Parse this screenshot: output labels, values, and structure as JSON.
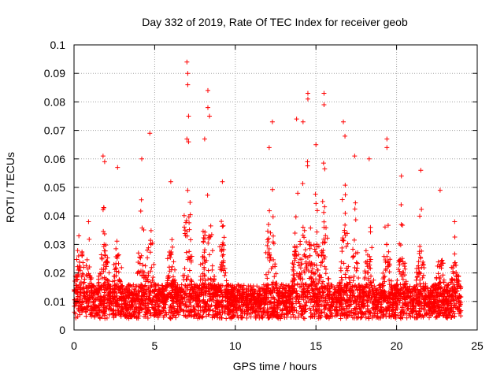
{
  "chart_data": {
    "type": "scatter",
    "title": "Day 332 of 2019, Rate Of TEC Index for receiver geob",
    "xlabel": "GPS time / hours",
    "ylabel": "ROTI / TECUs",
    "xlim": [
      0,
      25
    ],
    "ylim": [
      0,
      0.1
    ],
    "xticks": [
      "0",
      "5",
      "10",
      "15",
      "20",
      "25"
    ],
    "yticks": [
      "0",
      "0.01",
      "0.02",
      "0.03",
      "0.04",
      "0.05",
      "0.06",
      "0.07",
      "0.08",
      "0.09",
      "0.1"
    ],
    "grid": true,
    "marker": "+",
    "color": "#ff0000",
    "x_range_data": [
      0,
      24
    ],
    "series": [
      {
        "points": [
          [
            0.3,
            0.033
          ],
          [
            0.5,
            0.026
          ],
          [
            0.9,
            0.038
          ],
          [
            1.8,
            0.061
          ],
          [
            1.9,
            0.059
          ],
          [
            2.7,
            0.057
          ],
          [
            4.2,
            0.06
          ],
          [
            4.7,
            0.069
          ],
          [
            6.0,
            0.052
          ],
          [
            7.0,
            0.094
          ],
          [
            7.05,
            0.09
          ],
          [
            7.05,
            0.086
          ],
          [
            7.1,
            0.075
          ],
          [
            7.0,
            0.067
          ],
          [
            7.1,
            0.066
          ],
          [
            8.1,
            0.067
          ],
          [
            8.3,
            0.084
          ],
          [
            8.3,
            0.078
          ],
          [
            8.4,
            0.075
          ],
          [
            9.2,
            0.052
          ],
          [
            12.1,
            0.064
          ],
          [
            12.3,
            0.073
          ],
          [
            13.8,
            0.074
          ],
          [
            14.2,
            0.073
          ],
          [
            14.5,
            0.083
          ],
          [
            14.5,
            0.081
          ],
          [
            15.0,
            0.065
          ],
          [
            15.5,
            0.083
          ],
          [
            15.5,
            0.079
          ],
          [
            16.7,
            0.073
          ],
          [
            16.8,
            0.068
          ],
          [
            17.4,
            0.061
          ],
          [
            18.3,
            0.06
          ],
          [
            19.4,
            0.067
          ],
          [
            19.4,
            0.064
          ],
          [
            20.3,
            0.054
          ],
          [
            21.5,
            0.056
          ],
          [
            22.7,
            0.049
          ],
          [
            23.6,
            0.038
          ]
        ]
      }
    ]
  }
}
